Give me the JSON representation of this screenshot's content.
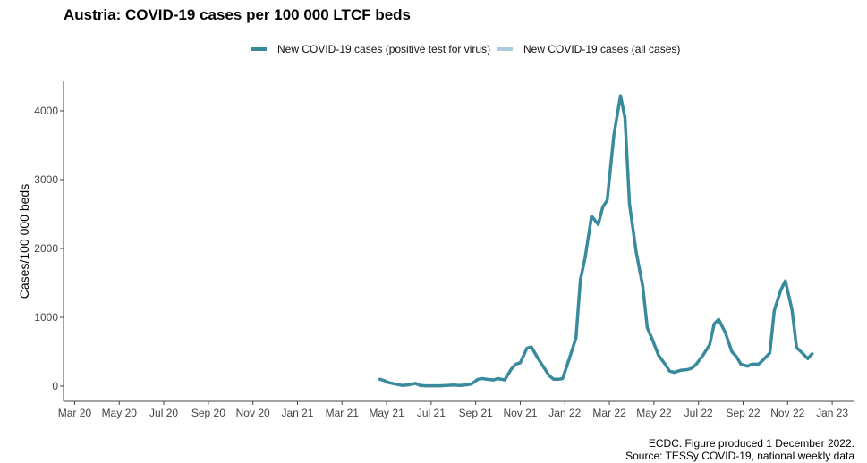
{
  "chart_data": {
    "type": "line",
    "title": "Austria: COVID-19 cases per 100 000 LTCF beds",
    "ylabel": "Cases/100 000 beds",
    "xlabel": "",
    "ylim": [
      -200,
      4400
    ],
    "y_ticks": [
      0,
      1000,
      2000,
      3000,
      4000
    ],
    "x_ticks": [
      "Mar 20",
      "May 20",
      "Jul 20",
      "Sep 20",
      "Nov 20",
      "Jan 21",
      "Mar 21",
      "May 21",
      "Jul 21",
      "Sep 21",
      "Nov 21",
      "Jan 22",
      "Mar 22",
      "May 22",
      "Jul 22",
      "Sep 22",
      "Nov 22",
      "Jan 23"
    ],
    "x_tick_positions": [
      0,
      2,
      4,
      6,
      8,
      10,
      12,
      14,
      16,
      18,
      20,
      22,
      24,
      26,
      28,
      30,
      32,
      34
    ],
    "x_range": [
      -0.5,
      35
    ],
    "grid": false,
    "legend_position": "top",
    "series": [
      {
        "name": "New COVID-19 cases (positive test for virus)",
        "color": "#3a8a9e",
        "x": [
          13.7,
          13.9,
          14.1,
          14.4,
          14.7,
          15.0,
          15.3,
          15.5,
          15.8,
          16.1,
          16.4,
          16.7,
          17.0,
          17.3,
          17.6,
          17.8,
          18.1,
          18.3,
          18.5,
          18.8,
          19.0,
          19.3,
          19.6,
          19.8,
          20.0,
          20.3,
          20.5,
          20.8,
          21.0,
          21.3,
          21.5,
          21.7,
          21.9,
          22.2,
          22.5,
          22.7,
          22.9,
          23.2,
          23.5,
          23.7,
          23.9,
          24.2,
          24.5,
          24.7,
          24.9,
          25.2,
          25.5,
          25.7,
          25.9,
          26.2,
          26.5,
          26.7,
          26.9,
          27.2,
          27.5,
          27.7,
          27.9,
          28.2,
          28.5,
          28.7,
          28.9,
          29.2,
          29.5,
          29.7,
          29.9,
          30.2,
          30.4,
          30.7,
          30.9,
          31.2,
          31.4,
          31.7,
          31.9,
          32.2,
          32.4,
          32.6,
          32.9,
          33.1
        ],
        "y": [
          100,
          80,
          50,
          30,
          10,
          20,
          40,
          10,
          5,
          5,
          5,
          10,
          15,
          10,
          20,
          30,
          100,
          110,
          100,
          90,
          110,
          90,
          250,
          320,
          340,
          550,
          570,
          400,
          300,
          150,
          100,
          100,
          110,
          400,
          700,
          1550,
          1850,
          2470,
          2350,
          2600,
          2700,
          3650,
          4220,
          3900,
          2650,
          1950,
          1450,
          850,
          700,
          450,
          320,
          220,
          200,
          230,
          240,
          260,
          320,
          450,
          600,
          900,
          970,
          780,
          500,
          430,
          320,
          290,
          320,
          320,
          380,
          480,
          1100,
          1400,
          1530,
          1100,
          560,
          500,
          400,
          470
        ]
      },
      {
        "name": "New COVID-19 cases (all cases)",
        "color": "#a8cde0",
        "x": [],
        "y": []
      }
    ]
  },
  "caption": {
    "line1": "ECDC. Figure produced 1 December 2022.",
    "line2": "Source: TESSy COVID-19, national weekly data"
  }
}
